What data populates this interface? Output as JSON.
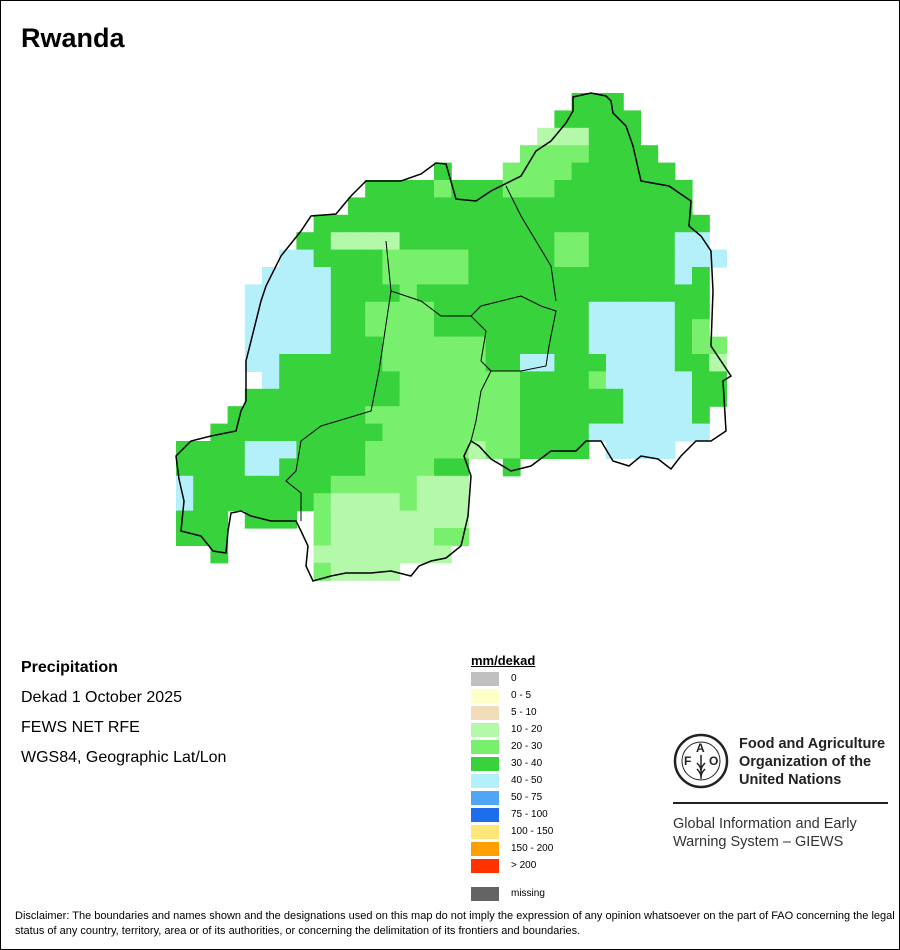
{
  "title": "Rwanda",
  "info": {
    "variable": "Precipitation",
    "period": "Dekad 1 October 2025",
    "source": "FEWS NET RFE",
    "projection": "WGS84, Geographic Lat/Lon"
  },
  "legend": {
    "title": "mm/dekad",
    "items": [
      {
        "label": "0",
        "color": "#c0c0c0"
      },
      {
        "label": "0 - 5",
        "color": "#ffffc8"
      },
      {
        "label": "5 - 10",
        "color": "#f0dcb9"
      },
      {
        "label": "10 - 20",
        "color": "#b4f8aa"
      },
      {
        "label": "20 - 30",
        "color": "#78f06e"
      },
      {
        "label": "30 - 40",
        "color": "#37d23c"
      },
      {
        "label": "40 - 50",
        "color": "#b4f0fa"
      },
      {
        "label": "50 - 75",
        "color": "#50a5f5"
      },
      {
        "label": "75 - 100",
        "color": "#1e6eeb"
      },
      {
        "label": "100 - 150",
        "color": "#ffe678"
      },
      {
        "label": "150 - 200",
        "color": "#ffa000"
      },
      {
        "label": "> 200",
        "color": "#ff3200"
      }
    ],
    "missing": {
      "label": "missing",
      "color": "#646464"
    }
  },
  "raster": {
    "codes": {
      "a": "10 - 20",
      "b": "20 - 30",
      "c": "30 - 40",
      "d": "40 - 50"
    },
    "colors": {
      "a": "#b4f8aa",
      "b": "#78f06e",
      "c": "#37d23c",
      "d": "#b4f0fa"
    },
    "rows": [
      [
        [
          23,
          "ccc"
        ]
      ],
      [
        [
          22,
          "ccccc"
        ]
      ],
      [
        [
          21,
          "aaaccc"
        ]
      ],
      [
        [
          20,
          "bbbbcccc"
        ]
      ],
      [
        [
          15,
          "c"
        ],
        [
          19,
          "bbbbcccccc"
        ]
      ],
      [
        [
          11,
          "ccccbcccbbbcccccccc"
        ]
      ],
      [
        [
          10,
          "cccccccccccccccccccc"
        ]
      ],
      [
        [
          8,
          "ccccccccccccccccccccccc"
        ]
      ],
      [
        [
          7,
          "ccaaaacccccccccbbcccccdd"
        ]
      ],
      [
        [
          6,
          "ddccccbbbbbcccccbbcccccddd"
        ]
      ],
      [
        [
          5,
          "ddddcccbbbbbccccccccccccdc"
        ]
      ],
      [
        [
          4,
          "dddddccccbccccccccccccccccc"
        ]
      ],
      [
        [
          4,
          "dddddccbbbbcccccccccdddddcc"
        ]
      ],
      [
        [
          4,
          "dddddccbbbbcccccccccdddddcb"
        ]
      ],
      [
        [
          4,
          "dddddcccbbbbbbccccccdddddcbb"
        ]
      ],
      [
        [
          4,
          "ddccccccbbbbbbccddcccddddcca"
        ]
      ],
      [
        [
          5,
          "dcccccccbbbbbbbccccbdddddcc"
        ]
      ],
      [
        [
          4,
          "cccccccccbbbbbbbccccccddddcc"
        ]
      ],
      [
        [
          3,
          "ccccccccbbbbbbbbbccccccddddc"
        ]
      ],
      [
        [
          2,
          "ccccccccccbbbbbbbbccccddddddd"
        ]
      ],
      [
        [
          0,
          "ccccdddccccbbbbbbabbcccc.dddd"
        ]
      ],
      [
        [
          0,
          "ccccddcccccbbbbcc..c"
        ]
      ],
      [
        [
          0,
          "dccccccccbbbbbaaa"
        ]
      ],
      [
        [
          0,
          "dcccccccbaaaabaaa"
        ]
      ],
      [
        [
          0,
          "ccc.ccc.baaaaaaaa"
        ]
      ],
      [
        [
          0,
          "ccc.....baaaaaabb"
        ]
      ],
      [
        [
          2,
          "c"
        ],
        [
          8,
          "aaaaaaaa"
        ]
      ],
      [
        [
          8,
          "baaaa"
        ]
      ]
    ]
  },
  "logo": {
    "fao_letters": "FAO",
    "motto": "FIAT PANIS",
    "org_name_lines": [
      "Food and Agriculture",
      "Organization of the",
      "United Nations"
    ],
    "giews_lines": [
      "Global Information and Early",
      "Warning System – GIEWS"
    ]
  },
  "disclaimer": "Disclaimer: The boundaries and names shown and the designations used on this map do not imply the expression of any opinion whatsoever on the part of FAO concerning the legal status of any country, territory, area or of its authorities, or concerning the delimitation of its frontiers and boundaries."
}
